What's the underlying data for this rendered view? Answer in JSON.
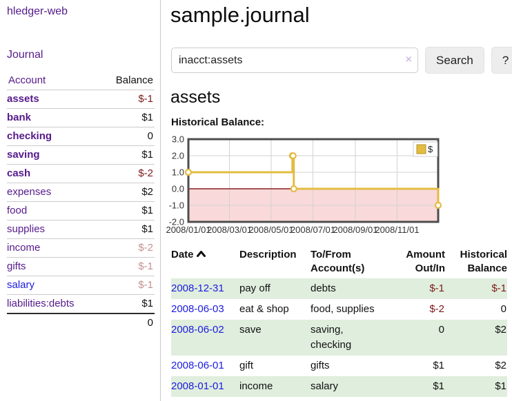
{
  "colors": {
    "link_visited": "#551a8b",
    "link_unvisited": "#1b1be0",
    "negative_strong": "#7c1a1a",
    "negative_soft": "#c59191",
    "row_stripe_green": "#e0eedd",
    "series_gold": "#e3bc42",
    "negative_region_pink": "#f9d9d9",
    "zero_line_red": "#8b1c1c"
  },
  "sidebar": {
    "app_title": "hledger-web",
    "journal_label": "Journal",
    "accounts_table": {
      "account_header": "Account",
      "balance_header": "Balance",
      "rows": [
        {
          "name": "assets",
          "level": 1,
          "bold": true,
          "balance": "$-1",
          "balance_style": "neg-strong",
          "link": "visited"
        },
        {
          "name": "bank",
          "level": 2,
          "bold": true,
          "balance": "$1",
          "balance_style": "pos",
          "link": "visited"
        },
        {
          "name": "checking",
          "level": 3,
          "bold": true,
          "balance": "0",
          "balance_style": "pos",
          "link": "visited"
        },
        {
          "name": "saving",
          "level": 3,
          "bold": true,
          "balance": "$1",
          "balance_style": "pos",
          "link": "visited"
        },
        {
          "name": "cash",
          "level": 2,
          "bold": true,
          "balance": "$-2",
          "balance_style": "neg-strong",
          "link": "visited"
        },
        {
          "name": "expenses",
          "level": 1,
          "bold": false,
          "balance": "$2",
          "balance_style": "pos",
          "link": "visited"
        },
        {
          "name": "food",
          "level": 2,
          "bold": false,
          "balance": "$1",
          "balance_style": "pos",
          "link": "visited"
        },
        {
          "name": "supplies",
          "level": 2,
          "bold": false,
          "balance": "$1",
          "balance_style": "pos",
          "link": "visited"
        },
        {
          "name": "income",
          "level": 1,
          "bold": false,
          "balance": "$-2",
          "balance_style": "neg-soft",
          "link": "visited"
        },
        {
          "name": "gifts",
          "level": 2,
          "bold": false,
          "balance": "$-1",
          "balance_style": "neg-soft",
          "link": "visited"
        },
        {
          "name": "salary",
          "level": 2,
          "bold": false,
          "balance": "$-1",
          "balance_style": "neg-soft",
          "link": "unvisited"
        },
        {
          "name": "liabilities:debts",
          "level": 1,
          "bold": false,
          "balance": "$1",
          "balance_style": "pos",
          "link": "visited"
        }
      ],
      "total": "0"
    }
  },
  "main": {
    "title": "sample.journal",
    "search": {
      "value": "inacct:assets",
      "clear_glyph": "×",
      "search_button": "Search",
      "help_button": "?"
    },
    "account_heading": "assets",
    "chart_label": "Historical Balance:"
  },
  "chart_data": {
    "type": "line",
    "title": "Historical Balance",
    "step": "post",
    "legend": [
      {
        "label": "$",
        "color": "#e3bc42"
      }
    ],
    "legend_position": "top-right",
    "grid": true,
    "ylim": [
      -2.0,
      3.0
    ],
    "y_ticks": [
      3.0,
      2.0,
      1.0,
      0.0,
      -1.0,
      -2.0
    ],
    "x_range_days": [
      0,
      365
    ],
    "x_ticks": [
      {
        "label": "2008/01/01",
        "day": 0
      },
      {
        "label": "2008/03/01",
        "day": 60
      },
      {
        "label": "2008/05/01",
        "day": 121
      },
      {
        "label": "2008/07/01",
        "day": 182
      },
      {
        "label": "2008/09/01",
        "day": 244
      },
      {
        "label": "2008/11/01",
        "day": 305
      }
    ],
    "series": [
      {
        "name": "$",
        "points": [
          {
            "date": "2008-01-01",
            "day": 0,
            "value": 1
          },
          {
            "date": "2008-06-01",
            "day": 152,
            "value": 2
          },
          {
            "date": "2008-06-02",
            "day": 153,
            "value": 2
          },
          {
            "date": "2008-06-03",
            "day": 154,
            "value": 0
          },
          {
            "date": "2008-12-31",
            "day": 365,
            "value": -1
          }
        ]
      }
    ]
  },
  "register": {
    "headers": [
      {
        "id": "date",
        "lines": [
          "Date"
        ],
        "align": "left",
        "sorted": "asc"
      },
      {
        "id": "description",
        "lines": [
          "Description"
        ],
        "align": "left"
      },
      {
        "id": "accounts",
        "lines": [
          "To/From",
          "Account(s)"
        ],
        "align": "left"
      },
      {
        "id": "amount",
        "lines": [
          "Amount",
          "Out/In"
        ],
        "align": "right"
      },
      {
        "id": "balance",
        "lines": [
          "Historical",
          "Balance"
        ],
        "align": "right"
      }
    ],
    "rows": [
      {
        "date": "2008-12-31",
        "description": "pay off",
        "accounts": "debts",
        "amount": "$-1",
        "balance": "$-1"
      },
      {
        "date": "2008-06-03",
        "description": "eat & shop",
        "accounts": "food, supplies",
        "amount": "$-2",
        "balance": "0"
      },
      {
        "date": "2008-06-02",
        "description": "save",
        "accounts": "saving, checking",
        "amount": "0",
        "balance": "$2"
      },
      {
        "date": "2008-06-01",
        "description": "gift",
        "accounts": "gifts",
        "amount": "$1",
        "balance": "$2"
      },
      {
        "date": "2008-01-01",
        "description": "income",
        "accounts": "salary",
        "amount": "$1",
        "balance": "$1"
      }
    ]
  }
}
